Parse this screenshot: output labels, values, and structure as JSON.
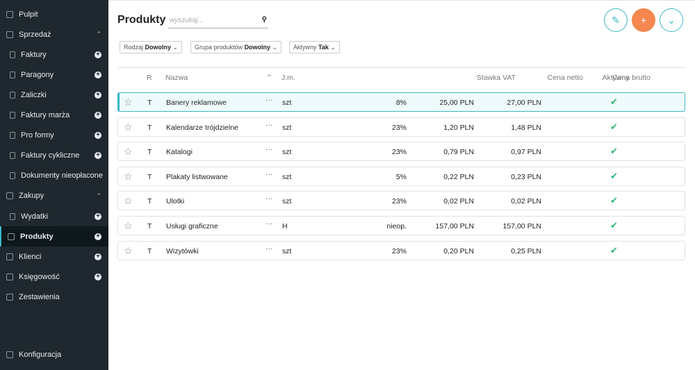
{
  "sidebar": {
    "items": [
      "Pulpit",
      "Sprzedaż",
      "Faktury",
      "Paragony",
      "Zaliczki",
      "Faktury marża",
      "Pro formy",
      "Faktury cykliczne",
      "Dokumenty nieopłacone",
      "Zakupy",
      "Wydatki",
      "Produkty",
      "Klienci",
      "Księgowość",
      "Zestawienia"
    ],
    "footer": "Konfiguracja"
  },
  "header": {
    "title": "Produkty",
    "search_placeholder": "wyszukaj..."
  },
  "filters": [
    {
      "label": "Rodzaj",
      "value": "Dowolny"
    },
    {
      "label": "Grupa produktów",
      "value": "Dowolny"
    },
    {
      "label": "Aktywny",
      "value": "Tak"
    }
  ],
  "table": {
    "columns": [
      "R",
      "Nazwa",
      "J.m.",
      "Stawka VAT",
      "Cena netto",
      "Cena brutto",
      "Aktywny"
    ],
    "rows": [
      [
        "T",
        "Banery reklamowe",
        "szt",
        "8%",
        "25,00 PLN",
        "27,00 PLN"
      ],
      [
        "T",
        "Kalendarze trójdzielne",
        "szt",
        "23%",
        "1,20 PLN",
        "1,48 PLN"
      ],
      [
        "T",
        "Katalogi",
        "szt",
        "23%",
        "0,79 PLN",
        "0,97 PLN"
      ],
      [
        "T",
        "Plakaty listwowane",
        "szt",
        "5%",
        "0,22 PLN",
        "0,23 PLN"
      ],
      [
        "T",
        "Ulotki",
        "szt",
        "23%",
        "0,02 PLN",
        "0,02 PLN"
      ],
      [
        "T",
        "Usługi graficzne",
        "H",
        "nieop.",
        "157,00 PLN",
        "157,00 PLN"
      ],
      [
        "T",
        "Wizytówki",
        "szt",
        "23%",
        "0,20 PLN",
        "0,25 PLN"
      ]
    ]
  }
}
